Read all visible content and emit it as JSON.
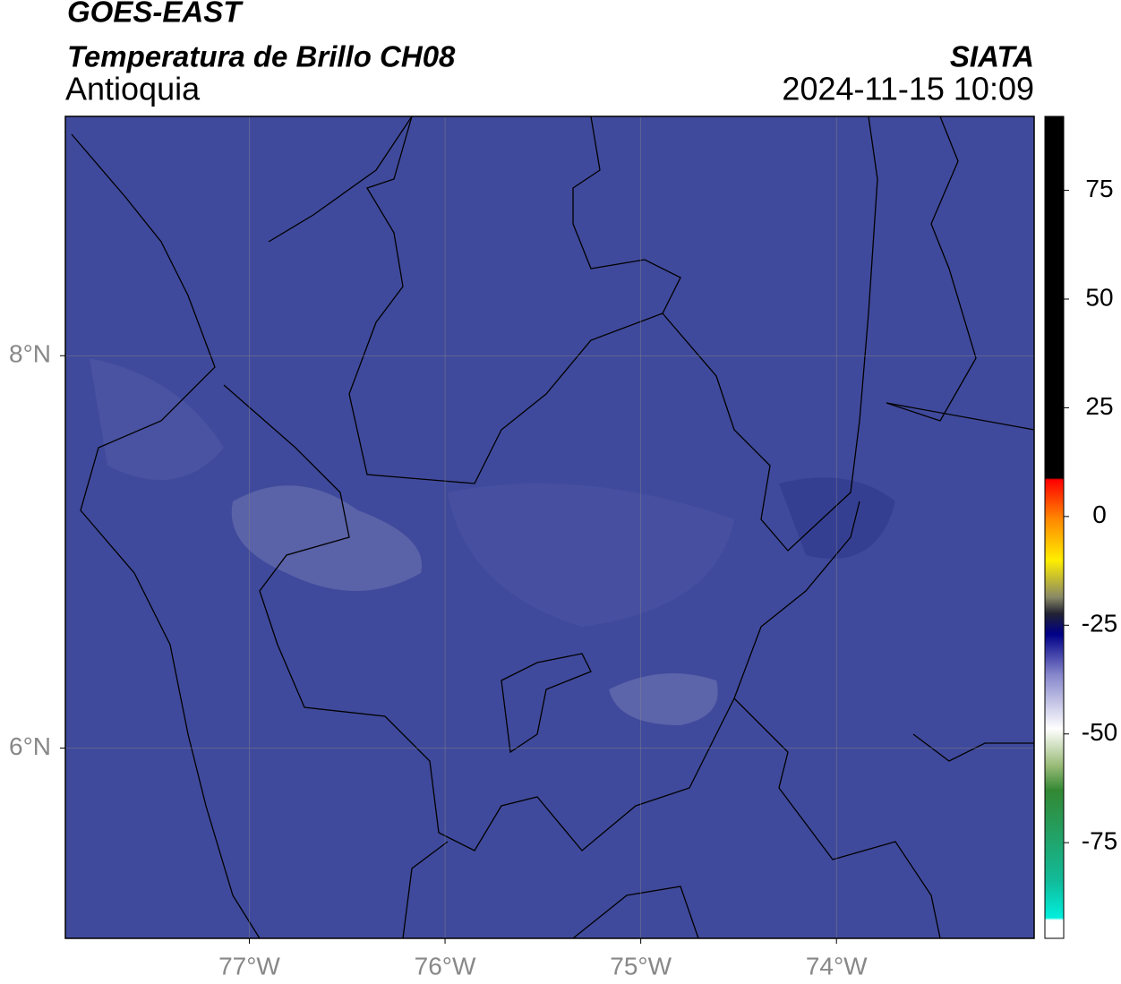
{
  "header": {
    "title": "GOES-EAST",
    "subtitle": "Temperatura de Brillo CH08",
    "region": "Antioquia",
    "source": "SIATA",
    "timestamp": "2024-11-15 10:09"
  },
  "map": {
    "xlim": [
      -77.94,
      -72.99
    ],
    "ylim": [
      5.03,
      9.22
    ],
    "xticks": [
      {
        "value": -77,
        "label": "77°W"
      },
      {
        "value": -76,
        "label": "76°W"
      },
      {
        "value": -75,
        "label": "75°W"
      },
      {
        "value": -74,
        "label": "74°W"
      }
    ],
    "yticks": [
      {
        "value": 8,
        "label": "8°N"
      },
      {
        "value": 6,
        "label": "6°N"
      }
    ],
    "grid": true
  },
  "colorbar": {
    "clim": [
      -97,
      92
    ],
    "ticks": [
      75,
      50,
      25,
      0,
      -25,
      -50,
      -75
    ]
  }
}
